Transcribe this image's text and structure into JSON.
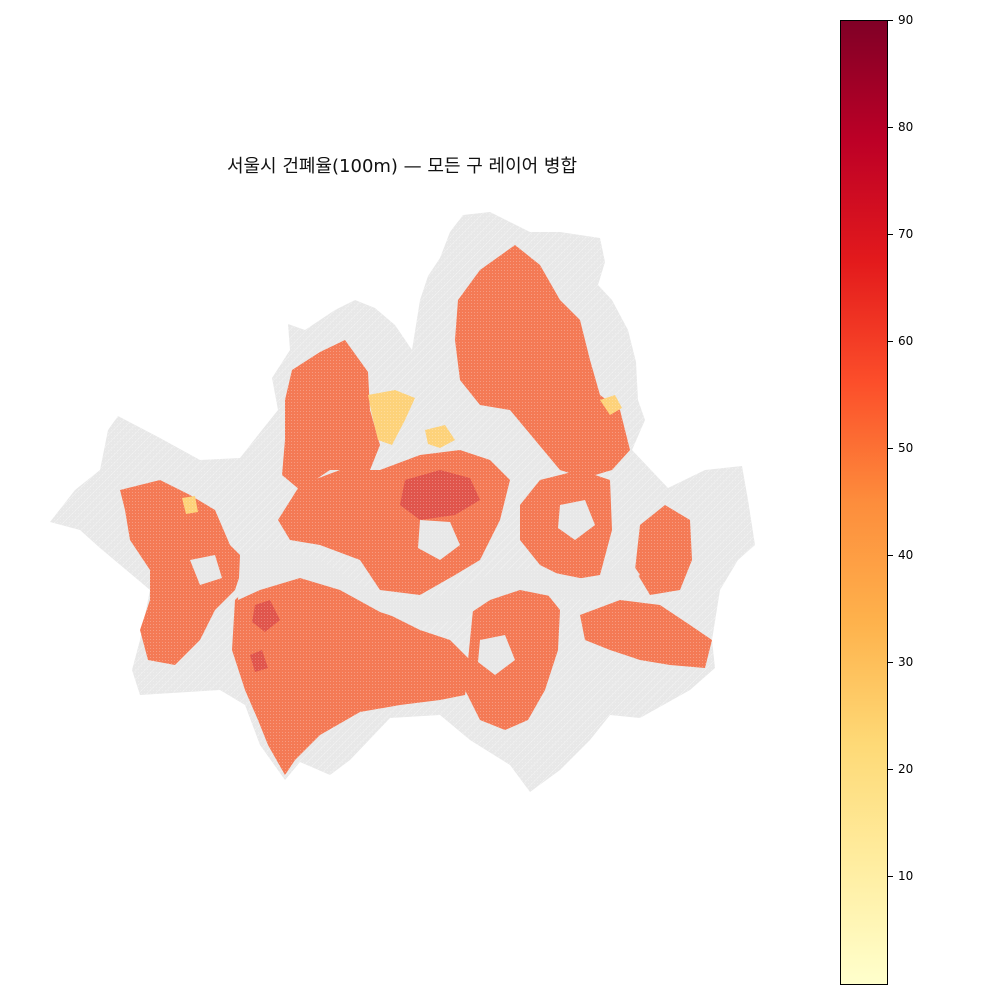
{
  "title": "서울시 건폐율(100m) — 모든 구 레이어 병합",
  "colorbar": {
    "min": 0,
    "max": 90,
    "ticks": [
      10,
      20,
      30,
      40,
      50,
      60,
      70,
      80,
      90
    ],
    "tick_labels": [
      "10",
      "20",
      "30",
      "40",
      "50",
      "60",
      "70",
      "80",
      "90"
    ],
    "colormap": "YlOrRd",
    "stops": [
      "#ffffcc",
      "#ffeda0",
      "#fed976",
      "#feb24c",
      "#fd8d3c",
      "#fc4e2a",
      "#e31a1c",
      "#bd0026",
      "#800026"
    ]
  },
  "colors": {
    "background_land": "#e8e8e8",
    "typical_fill": "#f47a55",
    "low_fill": "#fdd27a",
    "high_fill": "#d94a4a"
  }
}
